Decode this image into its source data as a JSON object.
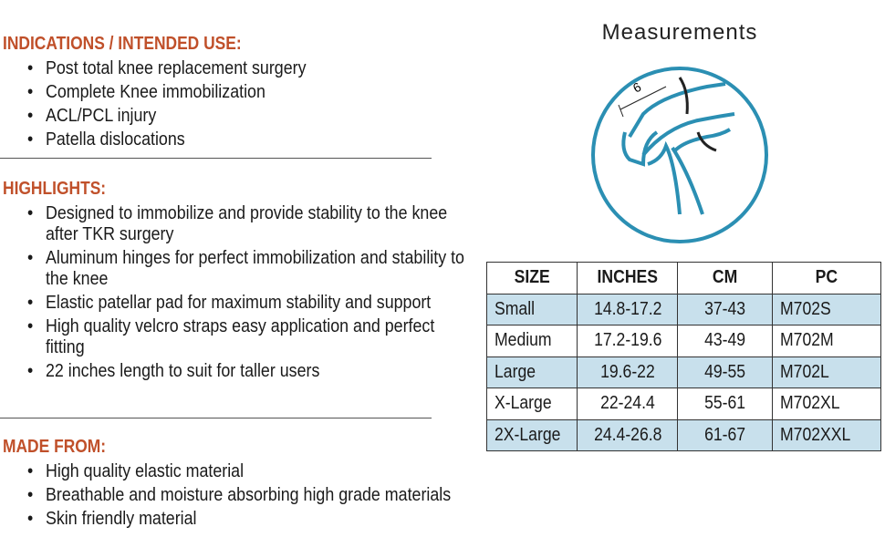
{
  "sections": [
    {
      "heading": "INDICATIONS / INTENDED USE:",
      "items": [
        "Post total knee replacement surgery",
        "Complete Knee immobilization",
        "ACL/PCL injury",
        "Patella dislocations"
      ]
    },
    {
      "heading": "HIGHLIGHTS:",
      "items": [
        "Designed to immobilize and provide stability to the knee after TKR surgery",
        "Aluminum hinges for perfect immobilization and stability to the knee",
        "Elastic patellar pad for maximum stability and support",
        "High quality velcro straps easy application and perfect fitting",
        "22 inches length to suit for taller users"
      ]
    },
    {
      "heading": "MADE FROM:",
      "items": [
        "High quality elastic material",
        "Breathable and moisture absorbing high grade materials",
        "Skin friendly material"
      ]
    }
  ],
  "measurements": {
    "title": "Measurements",
    "diagram_label": "6"
  },
  "table": {
    "header": [
      "SIZE",
      "INCHES",
      "CM",
      "PC"
    ],
    "rows": [
      [
        "Small",
        "14.8-17.2",
        "37-43",
        "M702S"
      ],
      [
        "Medium",
        "17.2-19.6",
        "43-49",
        "M702M"
      ],
      [
        "Large",
        "19.6-22",
        "49-55",
        "M702L"
      ],
      [
        "X-Large",
        "22-24.4",
        "55-61",
        "M702XL"
      ],
      [
        "2X-Large",
        "24.4-26.8",
        "61-67",
        "M702XXL"
      ]
    ]
  }
}
